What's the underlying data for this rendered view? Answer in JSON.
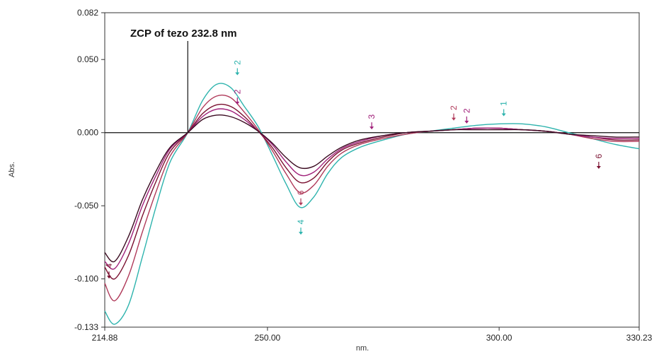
{
  "chart_data": {
    "type": "line",
    "xlabel": "nm.",
    "ylabel": "Abs.",
    "xlim": [
      214.88,
      330.23
    ],
    "ylim": [
      -0.133,
      0.082
    ],
    "x_ticks": [
      {
        "value": 214.88,
        "label": "214.88"
      },
      {
        "value": 250.0,
        "label": "250.00"
      },
      {
        "value": 300.0,
        "label": "300.00"
      },
      {
        "value": 330.23,
        "label": "330.23"
      }
    ],
    "y_ticks": [
      {
        "value": 0.082,
        "label": "0.082"
      },
      {
        "value": 0.05,
        "label": "0.050"
      },
      {
        "value": 0.0,
        "label": "0.000"
      },
      {
        "value": -0.05,
        "label": "-0.050"
      },
      {
        "value": -0.1,
        "label": "-0.100"
      },
      {
        "value": -0.133,
        "label": "-0.133"
      }
    ],
    "zero_line": 0.0,
    "annotation": {
      "text": "ZCP of tezo 232.8 nm",
      "x": 232.8
    },
    "x": [
      214.88,
      217,
      220,
      223,
      226,
      229,
      232.8,
      236,
      239,
      242,
      245,
      248,
      251,
      254,
      257,
      260,
      263,
      266,
      270,
      275,
      280,
      285,
      290,
      295,
      300,
      305,
      310,
      315,
      320,
      325,
      330.23
    ],
    "series": [
      {
        "name": "",
        "color": "#2db3ad",
        "values": [
          -0.122,
          -0.131,
          -0.118,
          -0.085,
          -0.05,
          -0.02,
          0.0,
          0.022,
          0.033,
          0.031,
          0.018,
          0.004,
          -0.015,
          -0.035,
          -0.051,
          -0.044,
          -0.028,
          -0.017,
          -0.01,
          -0.005,
          -0.001,
          0.001,
          0.003,
          0.005,
          0.006,
          0.006,
          0.004,
          0.0,
          -0.004,
          -0.008,
          -0.011
        ]
      },
      {
        "name": "",
        "color": "#b03a5a",
        "values": [
          -0.103,
          -0.115,
          -0.098,
          -0.068,
          -0.04,
          -0.016,
          0.0,
          0.017,
          0.025,
          0.024,
          0.014,
          0.002,
          -0.012,
          -0.028,
          -0.041,
          -0.036,
          -0.023,
          -0.014,
          -0.008,
          -0.004,
          -0.001,
          0.001,
          0.002,
          0.003,
          0.003,
          0.002,
          0.001,
          -0.001,
          -0.004,
          -0.006,
          -0.006
        ]
      },
      {
        "name": "",
        "color": "#7a1030",
        "values": [
          -0.092,
          -0.1,
          -0.084,
          -0.057,
          -0.033,
          -0.013,
          0.0,
          0.013,
          0.019,
          0.018,
          0.011,
          0.001,
          -0.01,
          -0.024,
          -0.034,
          -0.031,
          -0.02,
          -0.012,
          -0.007,
          -0.003,
          0.0,
          0.001,
          0.002,
          0.003,
          0.003,
          0.002,
          0.001,
          -0.001,
          -0.003,
          -0.005,
          -0.005
        ]
      },
      {
        "name": "",
        "color": "#a0207a",
        "values": [
          -0.088,
          -0.093,
          -0.076,
          -0.05,
          -0.029,
          -0.011,
          0.0,
          0.011,
          0.016,
          0.015,
          0.009,
          0.001,
          -0.008,
          -0.02,
          -0.029,
          -0.027,
          -0.018,
          -0.011,
          -0.006,
          -0.002,
          0.0,
          0.001,
          0.002,
          0.003,
          0.003,
          0.002,
          0.001,
          -0.001,
          -0.003,
          -0.004,
          -0.004
        ]
      },
      {
        "name": "",
        "color": "#3a0a20",
        "values": [
          -0.082,
          -0.088,
          -0.071,
          -0.046,
          -0.026,
          -0.01,
          0.0,
          0.009,
          0.012,
          0.011,
          0.007,
          0.001,
          -0.007,
          -0.017,
          -0.024,
          -0.023,
          -0.016,
          -0.01,
          -0.005,
          -0.002,
          0.0,
          0.001,
          0.002,
          0.002,
          0.002,
          0.002,
          0.001,
          -0.001,
          -0.002,
          -0.003,
          -0.003
        ]
      }
    ],
    "curve_labels": [
      {
        "text": "2",
        "x": 243.5,
        "y": 0.046,
        "color": "#2db3ad"
      },
      {
        "text": "2",
        "x": 243.5,
        "y": 0.026,
        "color": "#a0207a"
      },
      {
        "text": "4",
        "x": 257.2,
        "y": -0.063,
        "color": "#2db3ad"
      },
      {
        "text": "6",
        "x": 257.2,
        "y": -0.043,
        "color": "#b03a5a"
      },
      {
        "text": "3",
        "x": 272.5,
        "y": 0.009,
        "color": "#a0207a"
      },
      {
        "text": "2",
        "x": 290.2,
        "y": 0.015,
        "color": "#b03a5a"
      },
      {
        "text": "2",
        "x": 293.0,
        "y": 0.013,
        "color": "#a0207a"
      },
      {
        "text": "1",
        "x": 301.0,
        "y": 0.018,
        "color": "#2db3ad"
      },
      {
        "text": "6",
        "x": 321.5,
        "y": -0.018,
        "color": "#7a1030"
      },
      {
        "text": "4",
        "x": 215.8,
        "y": -0.093,
        "color": "#7a1030"
      }
    ],
    "grid": false,
    "legend": "none"
  }
}
